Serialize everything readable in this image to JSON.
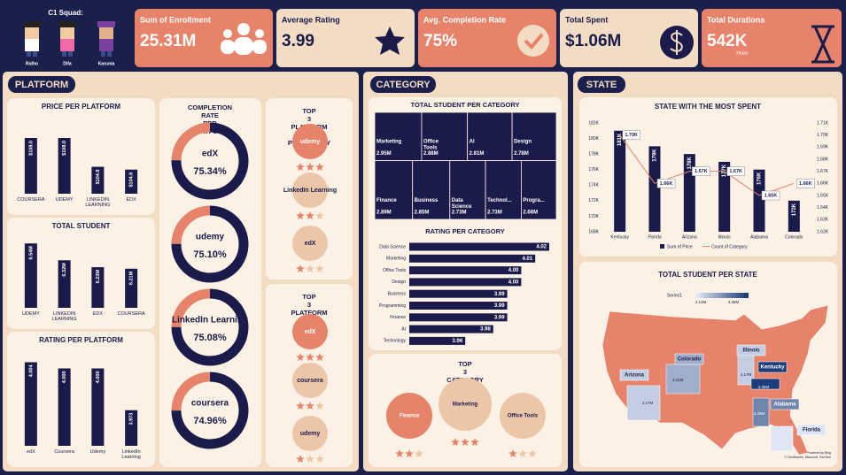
{
  "header": {
    "team_label": "C1 Squad:",
    "members": [
      "Ridho",
      "Difa",
      "Karunia"
    ]
  },
  "kpis": [
    {
      "label": "Sum of Enrollment",
      "value": "25.31M"
    },
    {
      "label": "Average Rating",
      "value": "3.99"
    },
    {
      "label": "Avg. Completion Rate",
      "value": "75%"
    },
    {
      "label": "Total Spent",
      "value": "$1.06M"
    },
    {
      "label": "Total Durations",
      "value": "542K",
      "unit": "Hours"
    }
  ],
  "sections": {
    "platform": "PLATFORM",
    "category": "CATEGORY",
    "state": "STATE"
  },
  "chart_data": [
    {
      "type": "bar",
      "title": "PRICE PER PLATFORM",
      "categories": [
        "COURSERA",
        "UDEMY",
        "LINKEDIN LEARNING",
        "EDX"
      ],
      "values": [
        108.0,
        108.0,
        104.9,
        104.6
      ],
      "value_labels": [
        "$108.0",
        "$108.0",
        "$104.9",
        "$104.6"
      ],
      "color": "#1b1b4b",
      "ylim": [
        102,
        110
      ]
    },
    {
      "type": "bar",
      "title": "TOTAL STUDENT",
      "categories": [
        "UDEMY",
        "LINKEDIN LEARNING",
        "EDX",
        "COURSERA"
      ],
      "values": [
        6.54,
        6.32,
        6.23,
        6.21
      ],
      "value_labels": [
        "6.54M",
        "6.32M",
        "6.23M",
        "6.21M"
      ],
      "color": "#1b1b4b",
      "ylim": [
        5.7,
        6.6
      ]
    },
    {
      "type": "bar",
      "title": "RATING PER PLATFORM",
      "categories": [
        "edX",
        "Coursera",
        "Udemy",
        "LinkedIn Learning"
      ],
      "values": [
        4.004,
        4.0,
        4.0,
        3.973
      ],
      "value_labels": [
        "4.004",
        "4.000",
        "4.000",
        "3.973"
      ],
      "color": "#1b1b4b",
      "ylim": [
        3.95,
        4.01
      ]
    },
    {
      "type": "donut",
      "title": "COMPLETION RATE PER PLATFORM",
      "categories": [
        "edX",
        "udemy",
        "LinkedIn Learning",
        "coursera"
      ],
      "values": [
        75.34,
        75.1,
        75.08,
        74.96
      ],
      "value_labels": [
        "75.34%",
        "75.10%",
        "75.08%",
        "74.96%"
      ],
      "color": "#1b1b4b",
      "rest_color": "#e8836b",
      "ylim": [
        0,
        100
      ]
    },
    {
      "type": "stars",
      "title": "TOP 3 PLATFORM BY POPULARITY",
      "categories": [
        "udemy",
        "LinkedIn Learning",
        "edX"
      ],
      "values": [
        3,
        2,
        1
      ],
      "color": "#e8836b"
    },
    {
      "type": "stars",
      "title": "TOP 3 PLATFORM BY RATING",
      "categories": [
        "edX",
        "coursera",
        "udemy"
      ],
      "values": [
        3,
        2,
        1
      ],
      "color": "#e8836b"
    },
    {
      "type": "treemap",
      "title": "TOTAL STUDENT PER CATEGORY",
      "categories": [
        "Marketing",
        "Office Tools",
        "AI",
        "Design",
        "Finance",
        "Business",
        "Data Science",
        "Technol...",
        "Progra..."
      ],
      "values": [
        2.95,
        2.88,
        2.81,
        2.78,
        2.89,
        2.85,
        2.73,
        2.73,
        2.68
      ],
      "value_labels": [
        "2.95M",
        "2.88M",
        "2.81M",
        "2.78M",
        "2.89M",
        "2.85M",
        "2.73M",
        "2.73M",
        "2.68M"
      ],
      "color": "#1b1b4b"
    },
    {
      "type": "hbar",
      "title": "RATING PER CATEGORY",
      "categories": [
        "Data Science",
        "Marketing",
        "Office Tools",
        "Design",
        "Business",
        "Programming",
        "Finance",
        "AI",
        "Technology"
      ],
      "values": [
        4.02,
        4.01,
        4.0,
        4.0,
        3.99,
        3.99,
        3.99,
        3.98,
        3.96
      ],
      "value_labels": [
        "4.02",
        "4.01",
        "4.00",
        "4.00",
        "3.99",
        "3.99",
        "3.99",
        "3.98",
        "3.96"
      ],
      "color": "#1b1b4b",
      "xlim": [
        3.92,
        4.02
      ]
    },
    {
      "type": "stars",
      "title": "TOP 3 CATEGORY BY POPULARITY",
      "categories": [
        "Finance",
        "Marketing",
        "Office Tools"
      ],
      "values": [
        2,
        3,
        1
      ],
      "color": "#e8836b"
    },
    {
      "type": "combo",
      "title": "STATE WITH THE MOST SPENT",
      "categories": [
        "Kentucky",
        "Florida",
        "Arizona",
        "Illinois",
        "Alabama",
        "Colorado"
      ],
      "series": [
        {
          "name": "Sum of Price",
          "type": "bar",
          "color": "#1b1b4b",
          "values": [
            181000,
            179000,
            178000,
            177000,
            176000,
            172000
          ],
          "value_labels": [
            "181K",
            "179K",
            "178K",
            "177K",
            "176K",
            "172K"
          ]
        },
        {
          "name": "Count of Category",
          "type": "line",
          "axis": "y2",
          "color": "#e8836b",
          "values": [
            1700,
            1660,
            1670,
            1670,
            1650,
            1660
          ],
          "value_labels": [
            "1.70K",
            "1.66K",
            "1.67K",
            "1.67K",
            "1.65K",
            "1.66K"
          ]
        }
      ],
      "ylim": [
        168000,
        182000
      ],
      "yticks": [
        {
          "value": 168000,
          "label": "168K"
        },
        {
          "value": 170000,
          "label": "170K"
        },
        {
          "value": 172000,
          "label": "172K"
        },
        {
          "value": 174000,
          "label": "174K"
        },
        {
          "value": 176000,
          "label": "176K"
        },
        {
          "value": 178000,
          "label": "178K"
        },
        {
          "value": 180000,
          "label": "180K"
        },
        {
          "value": 182000,
          "label": "182K"
        }
      ],
      "y2lim": [
        1620,
        1710
      ],
      "y2ticks": [
        {
          "value": 1620,
          "label": "1.62K"
        },
        {
          "value": 1630,
          "label": "1.63K"
        },
        {
          "value": 1640,
          "label": "1.64K"
        },
        {
          "value": 1650,
          "label": "1.65K"
        },
        {
          "value": 1660,
          "label": "1.66K"
        },
        {
          "value": 1670,
          "label": "1.67K"
        },
        {
          "value": 1680,
          "label": "1.68K"
        },
        {
          "value": 1690,
          "label": "1.69K"
        },
        {
          "value": 1700,
          "label": "1.70K"
        },
        {
          "value": 1710,
          "label": "1.71K"
        }
      ]
    },
    {
      "type": "map",
      "title": "TOTAL STUDENT PER STATE",
      "legend_title": "Series1",
      "categories": [
        "Illinois",
        "Kentucky",
        "Colorado",
        "Arizona",
        "Alabama",
        "Florida"
      ],
      "values": [
        4.17,
        4.35,
        4.21,
        4.17,
        4.26,
        4.14
      ],
      "value_labels": [
        "4.17M",
        "4.35M",
        "4.21M",
        "4.17M",
        "4.26M",
        null
      ],
      "clim": [
        {
          "value": 4.14,
          "label": "4.14M"
        },
        {
          "value": 4.35,
          "label": "4.35M"
        }
      ],
      "colors": [
        "#dfe6f3",
        "#1d3d7a"
      ],
      "base_color": "#e8836b",
      "credits": [
        "Powered by Bing",
        "© GeoNames, Microsoft, TomTom"
      ]
    }
  ]
}
